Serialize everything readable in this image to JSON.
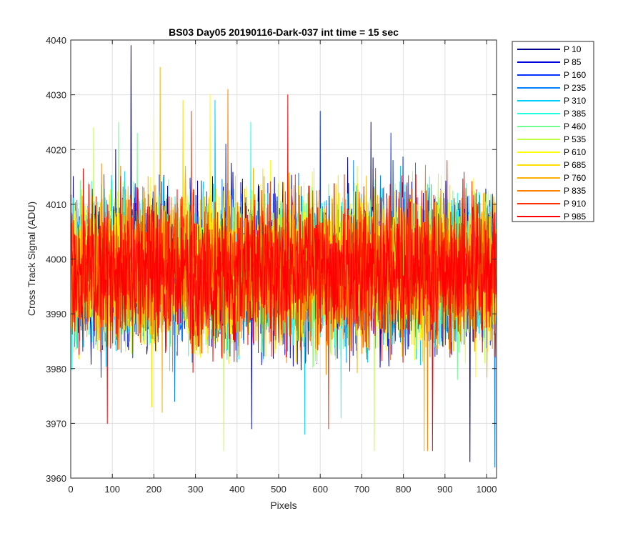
{
  "chart_data": {
    "type": "line",
    "title": "BS03 Day05 20190116-Dark-037 int time = 15 sec",
    "xlabel": "Pixels",
    "ylabel": "Cross Track Signal (ADU)",
    "xlim": [
      0,
      1024
    ],
    "ylim": [
      3960,
      4040
    ],
    "xticks": [
      0,
      100,
      200,
      300,
      400,
      500,
      600,
      700,
      800,
      900,
      1000
    ],
    "yticks": [
      3960,
      3970,
      3980,
      3990,
      4000,
      4010,
      4020,
      4030,
      4040
    ],
    "grid": true,
    "legend_position": "outside-top-right",
    "series": [
      {
        "name": "P 10",
        "color": "#00008f",
        "mean": 3998,
        "spread": 6.5,
        "peaks": [
          [
            145,
            4039
          ],
          [
            722,
            4025
          ],
          [
            960,
            3963
          ]
        ]
      },
      {
        "name": "P 85",
        "color": "#0000df",
        "mean": 3998,
        "spread": 6.5,
        "peaks": [
          [
            108,
            4020
          ],
          [
            435,
            3969
          ],
          [
            862,
            4013
          ]
        ]
      },
      {
        "name": "P 160",
        "color": "#0030ff",
        "mean": 3998,
        "spread": 6.5,
        "peaks": [
          [
            373,
            4021
          ],
          [
            600,
            4027
          ],
          [
            770,
            4023
          ]
        ]
      },
      {
        "name": "P 235",
        "color": "#0080ff",
        "mean": 3998,
        "spread": 6.5,
        "peaks": [
          [
            250,
            3974
          ],
          [
            1020,
            3962
          ],
          [
            680,
            4018
          ]
        ]
      },
      {
        "name": "P 310",
        "color": "#00cfff",
        "mean": 3998,
        "spread": 6.5,
        "peaks": [
          [
            347,
            4029
          ],
          [
            563,
            3968
          ],
          [
            130,
            4016
          ]
        ]
      },
      {
        "name": "P 385",
        "color": "#20ffdf",
        "mean": 3998,
        "spread": 6.5,
        "peaks": [
          [
            433,
            4025
          ],
          [
            650,
            3971
          ],
          [
            290,
            4016
          ]
        ]
      },
      {
        "name": "P 460",
        "color": "#70ff8f",
        "mean": 3998,
        "spread": 6.5,
        "peaks": [
          [
            115,
            4025
          ],
          [
            160,
            4023
          ],
          [
            930,
            3978
          ]
        ]
      },
      {
        "name": "P 535",
        "color": "#bfff40",
        "mean": 3998,
        "spread": 6.5,
        "peaks": [
          [
            368,
            3965
          ],
          [
            730,
            3965
          ],
          [
            55,
            4024
          ]
        ]
      },
      {
        "name": "P 610",
        "color": "#ffff00",
        "mean": 3998,
        "spread": 6.5,
        "peaks": [
          [
            335,
            4030
          ],
          [
            200,
            4026
          ],
          [
            480,
            4018
          ]
        ]
      },
      {
        "name": "P 685",
        "color": "#ffdf00",
        "mean": 3998,
        "spread": 6.5,
        "peaks": [
          [
            270,
            4029
          ],
          [
            195,
            3973
          ],
          [
            890,
            4012
          ]
        ]
      },
      {
        "name": "P 760",
        "color": "#ffaf00",
        "mean": 3998,
        "spread": 6.5,
        "peaks": [
          [
            215,
            4035
          ],
          [
            220,
            3972
          ],
          [
            850,
            3965
          ]
        ]
      },
      {
        "name": "P 835",
        "color": "#ff8000",
        "mean": 3998,
        "spread": 6.5,
        "peaks": [
          [
            378,
            4031
          ],
          [
            858,
            3965
          ],
          [
            120,
            4017
          ]
        ]
      },
      {
        "name": "P 910",
        "color": "#ff3000",
        "mean": 3998,
        "spread": 6.5,
        "peaks": [
          [
            290,
            4027
          ],
          [
            620,
            3969
          ],
          [
            905,
            4018
          ]
        ]
      },
      {
        "name": "P 985",
        "color": "#ff0000",
        "mean": 3998,
        "spread": 6.5,
        "peaks": [
          [
            522,
            4030
          ],
          [
            88,
            3970
          ],
          [
            870,
            3965
          ]
        ]
      }
    ]
  }
}
